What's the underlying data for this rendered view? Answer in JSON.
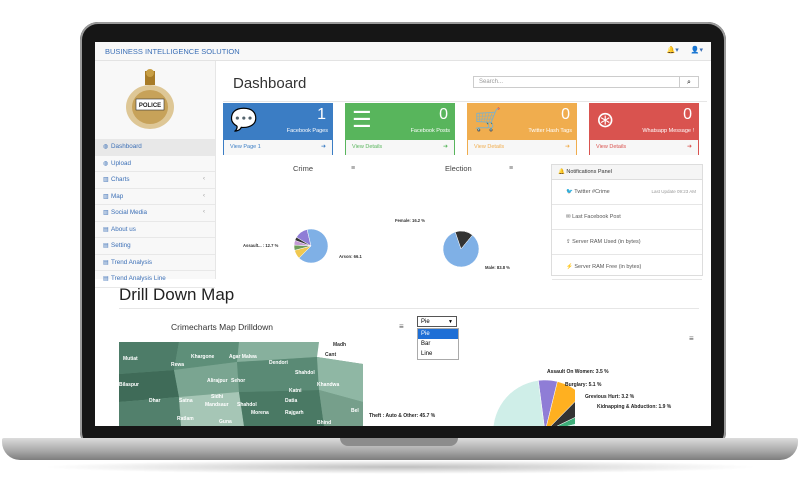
{
  "app": {
    "brand": "BUSINESS INTELLIGENCE SOLUTION",
    "top_icons": [
      "bell-icon",
      "user-icon"
    ]
  },
  "logo": {
    "text": "POLICE"
  },
  "sidebar": {
    "items": [
      {
        "label": "Dashboard",
        "icon": "dashboard-icon",
        "active": true,
        "caret": false
      },
      {
        "label": "Upload",
        "icon": "upload-icon",
        "caret": false
      },
      {
        "label": "Charts",
        "icon": "bar-chart-icon",
        "caret": true
      },
      {
        "label": "Map",
        "icon": "bar-chart-icon",
        "caret": true
      },
      {
        "label": "Social Media",
        "icon": "bar-chart-icon",
        "caret": true
      },
      {
        "label": "About us",
        "icon": "table-icon",
        "caret": false
      },
      {
        "label": "Setting",
        "icon": "table-icon",
        "caret": false
      },
      {
        "label": "Trend Analysis",
        "icon": "table-icon",
        "caret": false
      },
      {
        "label": "Trend Analysis Line",
        "icon": "table-icon",
        "caret": false
      }
    ]
  },
  "main": {
    "title": "Dashboard",
    "search_placeholder": "Search...",
    "panels": [
      {
        "count": "1",
        "caption": "Facebook Pages",
        "link": "View Page 1",
        "color": "#3b7dc4",
        "icon": "comments-icon"
      },
      {
        "count": "0",
        "caption": "Facebook Posts",
        "link": "View Details",
        "color": "#58b55c",
        "icon": "list-icon"
      },
      {
        "count": "0",
        "caption": "Twitter Hash Tags",
        "link": "View Details",
        "color": "#f0ad4e",
        "icon": "cart-icon"
      },
      {
        "count": "0",
        "caption": "Whatsapp Message !",
        "link": "View Details",
        "color": "#d9534f",
        "icon": "lifebuoy-icon"
      }
    ]
  },
  "crime_chart": {
    "title": "Crime",
    "labels": [
      "Assault... : 12.7 %",
      "Arson: 66.1"
    ]
  },
  "election_chart": {
    "title": "Election",
    "labels": [
      "Female: 16.2 %",
      "Male: 83.8 %"
    ]
  },
  "notifications": {
    "title": "Notifications Panel",
    "items": [
      {
        "text": "Twitter #Crime",
        "meta": "Last Update 09:23 AM"
      },
      {
        "text": "Last Facebook Post",
        "meta": ""
      },
      {
        "text": "Server RAM Used (in bytes)",
        "meta": ""
      },
      {
        "text": "Server RAM Free (in bytes)",
        "meta": ""
      }
    ]
  },
  "drill": {
    "title": "Drill Down Map",
    "map_title": "Crimecharts Map Drilldown",
    "map_labels": [
      "Madh",
      "Cant",
      "Mutiat",
      "Khargone",
      "Agar Malwa",
      "Dendori",
      "Rewa",
      "Shahdol",
      "Alirajpur",
      "Sehor",
      "Khandwa",
      "Katni",
      "Bilaspur",
      "Dhar",
      "Satna",
      "Sidhi",
      "Shahdol",
      "Datia",
      "Mandsaur",
      "Morena",
      "Rajgarh",
      "Ratlam",
      "Guna",
      "Bhind",
      "Bel"
    ],
    "select": {
      "value": "Pie",
      "options": [
        "Pie",
        "Bar",
        "Line"
      ]
    },
    "pie_labels": [
      "Assault On Women: 3.5 %",
      "Burglary: 5.1 %",
      "Grevious Hurt: 3.2 %",
      "Kidnapping & Abduction: 1.9 %",
      "Theft : Auto & Other: 45.7 %"
    ]
  },
  "chart_data": [
    {
      "type": "pie",
      "title": "Crime",
      "series": [
        {
          "values": [
            {
              "label": "Assault...",
              "value": 12.7
            },
            {
              "label": "Arson",
              "value": 66.1
            },
            {
              "label": "",
              "value": 8.5
            },
            {
              "label": "",
              "value": 5.0
            },
            {
              "label": "",
              "value": 4.5
            },
            {
              "label": "",
              "value": 3.2
            }
          ]
        }
      ]
    },
    {
      "type": "pie",
      "title": "Election",
      "series": [
        {
          "values": [
            {
              "label": "Female",
              "value": 16.2
            },
            {
              "label": "Male",
              "value": 83.8
            }
          ]
        }
      ]
    },
    {
      "type": "pie",
      "title": "Crimecharts Map Drilldown",
      "series": [
        {
          "values": [
            {
              "label": "Assault On Women",
              "value": 3.5
            },
            {
              "label": "Burglary",
              "value": 5.1
            },
            {
              "label": "Grevious Hurt",
              "value": 3.2
            },
            {
              "label": "Kidnapping & Abduction",
              "value": 1.9
            },
            {
              "label": "Theft : Auto & Other",
              "value": 45.7
            }
          ]
        }
      ]
    }
  ],
  "colors": {
    "accent": "#3b6fb6",
    "crime_pie": [
      "#8f7dd6",
      "#7fb0e6",
      "#f0c850",
      "#6f9c5b",
      "#c59ad6",
      "#333333"
    ],
    "election_pie": [
      "#333333",
      "#7fb0e6"
    ],
    "big_pie": [
      "#8f7dd6",
      "#ffb020",
      "#333333",
      "#3fae7a",
      "#cfeee8"
    ]
  }
}
